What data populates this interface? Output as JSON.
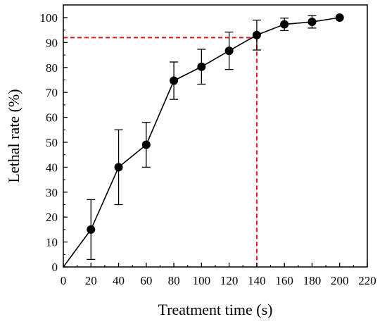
{
  "chart_data": {
    "type": "line",
    "title": "",
    "xlabel": "Treatment time (s)",
    "ylabel": "Lethal rate (%)",
    "xlim": [
      0,
      220
    ],
    "ylim": [
      0,
      105
    ],
    "xticks": [
      0,
      20,
      40,
      60,
      80,
      100,
      120,
      140,
      160,
      180,
      200,
      220
    ],
    "yticks": [
      0,
      10,
      20,
      30,
      40,
      50,
      60,
      70,
      80,
      90,
      100
    ],
    "grid": false,
    "legend": "none",
    "series": [
      {
        "x": [
          0,
          20,
          40,
          60,
          80,
          100,
          120,
          140,
          160,
          180,
          200
        ],
        "y": [
          0,
          15,
          40,
          49,
          74.7,
          80.3,
          86.7,
          93,
          97.3,
          98.3,
          100
        ],
        "err": [
          0,
          12,
          15,
          9,
          7.5,
          7,
          7.5,
          6,
          2.5,
          2.5,
          0
        ],
        "color": "#000000"
      }
    ],
    "reference_lines": {
      "x": 140,
      "y": 92,
      "color": "#e8141b",
      "style": "dashed"
    }
  }
}
